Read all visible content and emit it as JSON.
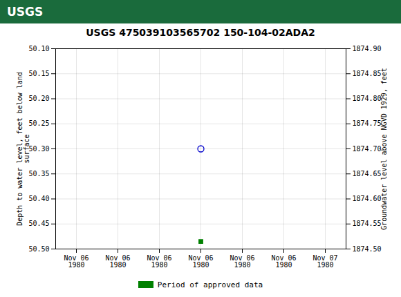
{
  "chart_data": {
    "type": "scatter",
    "title": "USGS 475039103565702 150-104-02ADA2",
    "annotations": [
      "USGS"
    ],
    "categories": [
      "Nov 06\n1980",
      "Nov 06\n1980",
      "Nov 06\n1980",
      "Nov 06\n1980",
      "Nov 06\n1980",
      "Nov 06\n1980",
      "Nov 07\n1980"
    ],
    "series": [
      {
        "color": "#0000cc",
        "marker": "circle_open",
        "values": [
          null,
          null,
          null,
          50.3,
          null,
          null,
          null
        ]
      },
      {
        "name": "Period of approved data",
        "color": "#008000",
        "marker": "square",
        "values": [
          null,
          null,
          null,
          50.485,
          null,
          null,
          null
        ]
      }
    ],
    "ylabel": "Depth to water level, feet below land\nsurface",
    "y2label": "Groundwater level above NGVD 1929, feet",
    "ylim": [
      50.5,
      50.1
    ],
    "yticks": [
      {
        "value": 50.1,
        "label": "50.10"
      },
      50.15,
      {
        "value": 50.2,
        "label": "50.20"
      },
      50.25,
      {
        "value": 50.3,
        "label": "50.30"
      },
      50.35,
      {
        "value": 50.4,
        "label": "50.40"
      },
      50.45,
      {
        "value": 50.5,
        "label": "50.50"
      }
    ],
    "y2lim": [
      1874.5,
      1874.9
    ],
    "y2ticks": [
      {
        "value": 1874.5,
        "label": "1874.50"
      },
      1874.55,
      {
        "value": 1874.6,
        "label": "1874.60"
      },
      1874.65,
      {
        "value": 1874.7,
        "label": "1874.70"
      },
      1874.75,
      {
        "value": 1874.8,
        "label": "1874.80"
      },
      1874.85,
      {
        "value": 1874.9,
        "label": "1874.90"
      }
    ],
    "grid": true,
    "legend": "bottom"
  }
}
